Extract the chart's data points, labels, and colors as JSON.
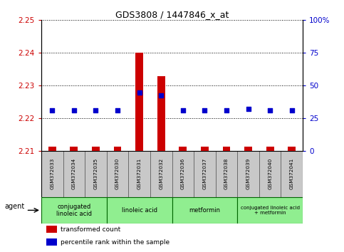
{
  "title": "GDS3808 / 1447846_x_at",
  "samples": [
    "GSM372033",
    "GSM372034",
    "GSM372035",
    "GSM372030",
    "GSM372031",
    "GSM372032",
    "GSM372036",
    "GSM372037",
    "GSM372038",
    "GSM372039",
    "GSM372040",
    "GSM372041"
  ],
  "transformed_count": [
    2.2115,
    2.2115,
    2.2115,
    2.2115,
    2.24,
    2.233,
    2.2115,
    2.2115,
    2.2115,
    2.2115,
    2.2115,
    2.2115
  ],
  "percentile_rank_y": [
    2.2225,
    2.2225,
    2.2225,
    2.2225,
    2.228,
    2.227,
    2.2225,
    2.2225,
    2.2225,
    2.223,
    2.2225,
    2.2225
  ],
  "ylim": [
    2.21,
    2.25
  ],
  "yticks": [
    2.21,
    2.22,
    2.23,
    2.24,
    2.25
  ],
  "y2ticks_pct": [
    0,
    25,
    50,
    75,
    100
  ],
  "y2labels": [
    "0",
    "25",
    "50",
    "75",
    "100%"
  ],
  "groups": [
    {
      "label": "conjugated\nlinoleic acid",
      "start": 0,
      "end": 2,
      "color": "#90EE90"
    },
    {
      "label": "linoleic acid",
      "start": 3,
      "end": 5,
      "color": "#90EE90"
    },
    {
      "label": "metformin",
      "start": 6,
      "end": 8,
      "color": "#90EE90"
    },
    {
      "label": "conjugated linoleic acid\n+ metformin",
      "start": 9,
      "end": 11,
      "color": "#90EE90"
    }
  ],
  "bar_color": "#CC0000",
  "dot_color": "#0000CC",
  "bar_width": 0.35,
  "background_color": "#ffffff",
  "tick_color_left": "#CC0000",
  "tick_color_right": "#0000CC",
  "legend_items": [
    {
      "color": "#CC0000",
      "label": "transformed count"
    },
    {
      "color": "#0000CC",
      "label": "percentile rank within the sample"
    }
  ]
}
